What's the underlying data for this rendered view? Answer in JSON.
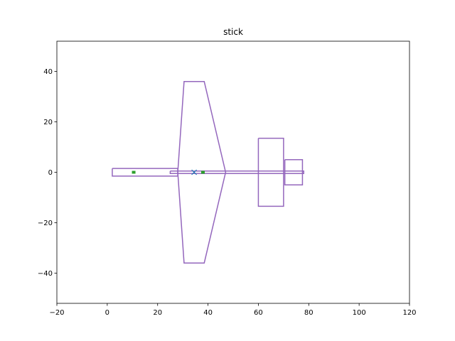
{
  "chart_data": {
    "type": "line",
    "title": "stick",
    "xlabel": "",
    "ylabel": "",
    "xlim": [
      -20,
      120
    ],
    "ylim": [
      -52,
      52
    ],
    "xticks": [
      -20,
      0,
      20,
      40,
      60,
      80,
      100,
      120
    ],
    "yticks": [
      -40,
      -20,
      0,
      20,
      40
    ],
    "xtick_labels": [
      "−20",
      "0",
      "20",
      "40",
      "60",
      "80",
      "100",
      "120"
    ],
    "ytick_labels": [
      "−40",
      "−20",
      "0",
      "20",
      "40"
    ],
    "grid": false,
    "legend": "none",
    "colors": {
      "outline": "#9467bd",
      "marker_cross": "#1f77b4",
      "marker_square": "#2ca02c"
    },
    "series": [
      {
        "values": [
          [
            2,
            1.5
          ],
          [
            28,
            1.5
          ],
          [
            28,
            -1.5
          ],
          [
            2,
            -1.5
          ],
          [
            2,
            1.5
          ]
        ]
      },
      {
        "values": [
          [
            28,
            0
          ],
          [
            30.5,
            36
          ],
          [
            38.5,
            36
          ],
          [
            47,
            0
          ],
          [
            38.5,
            -36
          ],
          [
            30.5,
            -36
          ],
          [
            28,
            0
          ]
        ]
      },
      {
        "values": [
          [
            25,
            0.5
          ],
          [
            78,
            0.5
          ],
          [
            78,
            -0.5
          ],
          [
            25,
            -0.5
          ],
          [
            25,
            0.5
          ]
        ]
      },
      {
        "values": [
          [
            60,
            13.5
          ],
          [
            70,
            13.5
          ],
          [
            70,
            -13.5
          ],
          [
            60,
            -13.5
          ],
          [
            60,
            13.5
          ]
        ]
      },
      {
        "values": [
          [
            70.5,
            5
          ],
          [
            77.5,
            5
          ],
          [
            77.5,
            -5
          ],
          [
            70.5,
            -5
          ],
          [
            70.5,
            5
          ]
        ]
      }
    ],
    "markers": [
      {
        "shape": "x",
        "x": 34.5,
        "y": 0,
        "color": "marker_cross"
      },
      {
        "shape": "square",
        "x": 10.5,
        "y": 0,
        "color": "marker_square"
      },
      {
        "shape": "square",
        "x": 38,
        "y": 0,
        "color": "marker_square"
      }
    ]
  }
}
